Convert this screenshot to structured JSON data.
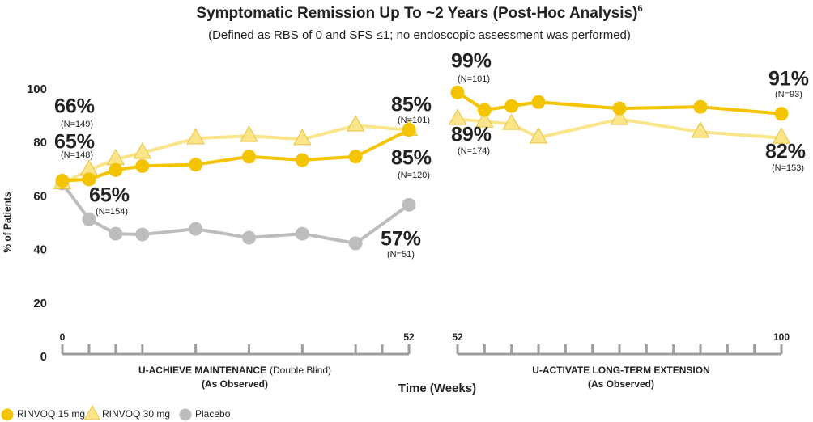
{
  "title": "Symptomatic Remission Up To ~2 Years (Post-Hoc Analysis)",
  "title_footnote": "6",
  "subtitle": "(Defined as RBS of 0 and SFS ≤1; no endoscopic assessment was performed)",
  "xlabel": "Time (Weeks)",
  "ylabel": "% of Patients",
  "chart_data": [
    {
      "type": "line",
      "xlabel": "U-ACHIEVE MAINTENANCE",
      "xlabel_note": "(Double Blind)",
      "xlabel_sub": "(As Observed)",
      "xlim": [
        0,
        52
      ],
      "xticks": [
        0,
        52
      ],
      "xminorticks": [
        4,
        8,
        12,
        20,
        28,
        36,
        44,
        48
      ],
      "ylim": [
        0,
        100
      ],
      "yticks": [
        0,
        20,
        40,
        60,
        80,
        100
      ],
      "x": [
        0,
        4,
        8,
        12,
        20,
        28,
        36,
        44,
        52
      ],
      "series": [
        {
          "name": "RINVOQ 15 mg",
          "color": "#f5c400",
          "marker": "circle",
          "values": [
            66,
            66.5,
            70,
            71.5,
            72,
            75,
            73.7,
            75,
            85
          ],
          "value_labels": [
            "66%",
            null,
            null,
            null,
            null,
            null,
            null,
            null,
            "85%"
          ],
          "n_labels": [
            "(N=149)",
            null,
            null,
            null,
            null,
            null,
            null,
            null,
            "(N=101)"
          ]
        },
        {
          "name": "RINVOQ 30 mg",
          "color": "#fbe58a",
          "marker": "triangle",
          "values": [
            65,
            70,
            74,
            76.4,
            81.8,
            82.7,
            81.5,
            86.6,
            85
          ],
          "value_labels": [
            "65%",
            null,
            null,
            null,
            null,
            null,
            null,
            null,
            "85%"
          ],
          "n_labels": [
            "(N=148)",
            null,
            null,
            null,
            null,
            null,
            null,
            null,
            "(N=120)"
          ]
        },
        {
          "name": "Placebo",
          "color": "#bdbdbd",
          "marker": "circle",
          "values": [
            65,
            51.6,
            46.2,
            45.9,
            48,
            44.7,
            46.2,
            42.6,
            57
          ],
          "value_labels": [
            "65%",
            null,
            null,
            null,
            null,
            null,
            null,
            null,
            "57%"
          ],
          "n_labels": [
            "(N=154)",
            null,
            null,
            null,
            null,
            null,
            null,
            null,
            "(N=51)"
          ]
        }
      ]
    },
    {
      "type": "line",
      "xlabel": "U-ACTIVATE LONG-TERM EXTENSION",
      "xlabel_sub": "(As Observed)",
      "xlim": [
        52,
        100
      ],
      "xticks": [
        52,
        100
      ],
      "xminorticks": [
        56,
        60,
        64,
        68,
        72,
        76,
        80,
        84,
        88,
        92,
        96
      ],
      "ylim": [
        0,
        100
      ],
      "x": [
        52,
        56,
        60,
        64,
        76,
        88,
        100
      ],
      "series": [
        {
          "name": "RINVOQ 15 mg",
          "color": "#f5c400",
          "marker": "circle",
          "values": [
            99,
            92.4,
            93.9,
            95.4,
            93,
            93.6,
            91
          ],
          "value_labels": [
            "99%",
            null,
            null,
            null,
            null,
            null,
            "91%"
          ],
          "n_labels": [
            "(N=101)",
            null,
            null,
            null,
            null,
            null,
            "(N=93)"
          ]
        },
        {
          "name": "RINVOQ 30 mg",
          "color": "#fbe58a",
          "marker": "triangle",
          "values": [
            89,
            88.1,
            87.2,
            82.1,
            89,
            84.2,
            82
          ],
          "value_labels": [
            "89%",
            null,
            null,
            null,
            null,
            null,
            "82%"
          ],
          "n_labels": [
            "(N=174)",
            null,
            null,
            null,
            null,
            null,
            "(N=153)"
          ]
        }
      ]
    }
  ]
}
